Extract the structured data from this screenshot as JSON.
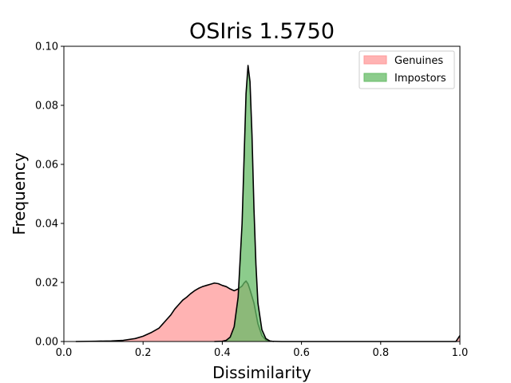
{
  "chart_data": {
    "type": "area",
    "title": "OSIris 1.5750",
    "xlabel": "Dissimilarity",
    "ylabel": "Frequency",
    "xlim": [
      0.0,
      1.0
    ],
    "ylim": [
      0.0,
      0.1
    ],
    "xticks": [
      "0.0",
      "0.2",
      "0.4",
      "0.6",
      "0.8",
      "1.0"
    ],
    "xtick_values": [
      0.0,
      0.2,
      0.4,
      0.6,
      0.8,
      1.0
    ],
    "yticks": [
      "0.00",
      "0.02",
      "0.04",
      "0.06",
      "0.08",
      "0.10"
    ],
    "ytick_values": [
      0.0,
      0.02,
      0.04,
      0.06,
      0.08,
      0.1
    ],
    "grid": false,
    "legend_position": "top-right",
    "series": [
      {
        "name": "Genuines",
        "color": "#ff9999",
        "points": [
          [
            0.03,
            0.0
          ],
          [
            0.08,
            0.0001
          ],
          [
            0.12,
            0.0002
          ],
          [
            0.15,
            0.0004
          ],
          [
            0.18,
            0.001
          ],
          [
            0.2,
            0.0018
          ],
          [
            0.22,
            0.003
          ],
          [
            0.24,
            0.0045
          ],
          [
            0.25,
            0.006
          ],
          [
            0.26,
            0.0075
          ],
          [
            0.27,
            0.009
          ],
          [
            0.28,
            0.011
          ],
          [
            0.29,
            0.0125
          ],
          [
            0.3,
            0.014
          ],
          [
            0.31,
            0.015
          ],
          [
            0.32,
            0.0162
          ],
          [
            0.33,
            0.0172
          ],
          [
            0.34,
            0.018
          ],
          [
            0.35,
            0.0186
          ],
          [
            0.36,
            0.019
          ],
          [
            0.37,
            0.0194
          ],
          [
            0.38,
            0.0198
          ],
          [
            0.39,
            0.0196
          ],
          [
            0.4,
            0.019
          ],
          [
            0.41,
            0.0186
          ],
          [
            0.42,
            0.0178
          ],
          [
            0.43,
            0.0172
          ],
          [
            0.44,
            0.0178
          ],
          [
            0.45,
            0.0188
          ],
          [
            0.455,
            0.0198
          ],
          [
            0.46,
            0.0205
          ],
          [
            0.465,
            0.0195
          ],
          [
            0.47,
            0.0175
          ],
          [
            0.48,
            0.013
          ],
          [
            0.49,
            0.006
          ],
          [
            0.5,
            0.002
          ],
          [
            0.51,
            0.0005
          ],
          [
            0.52,
            0.0001
          ],
          [
            0.55,
            0.0
          ],
          [
            0.6,
            0.0
          ],
          [
            0.8,
            0.0
          ],
          [
            0.99,
            0.0
          ],
          [
            1.0,
            0.002
          ]
        ]
      },
      {
        "name": "Impostors",
        "color": "#66bb66",
        "points": [
          [
            0.38,
            0.0
          ],
          [
            0.4,
            0.0001
          ],
          [
            0.41,
            0.0004
          ],
          [
            0.42,
            0.0015
          ],
          [
            0.43,
            0.005
          ],
          [
            0.44,
            0.015
          ],
          [
            0.45,
            0.04
          ],
          [
            0.455,
            0.062
          ],
          [
            0.46,
            0.084
          ],
          [
            0.465,
            0.0935
          ],
          [
            0.47,
            0.088
          ],
          [
            0.475,
            0.07
          ],
          [
            0.48,
            0.045
          ],
          [
            0.485,
            0.026
          ],
          [
            0.49,
            0.013
          ],
          [
            0.5,
            0.004
          ],
          [
            0.51,
            0.001
          ],
          [
            0.52,
            0.0002
          ],
          [
            0.53,
            0.0
          ]
        ]
      }
    ]
  }
}
